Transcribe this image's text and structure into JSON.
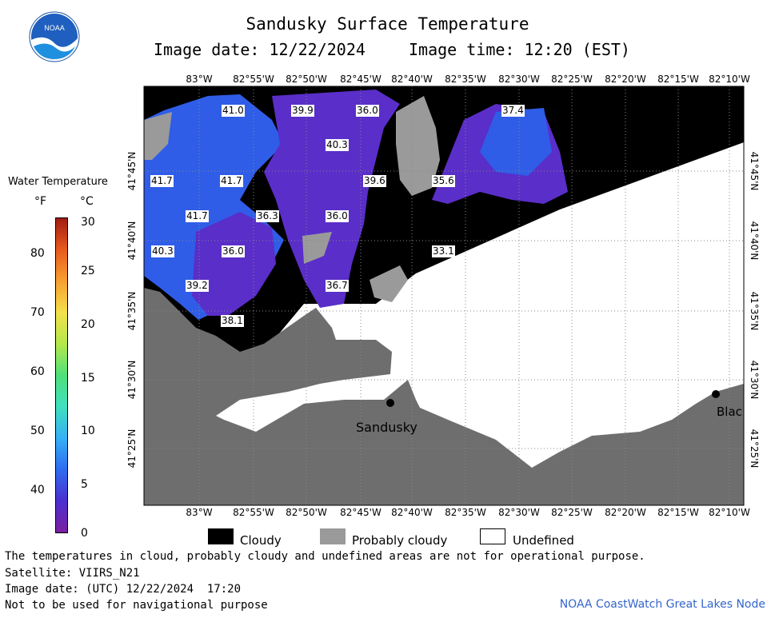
{
  "header": {
    "title": "Sandusky Surface Temperature",
    "image_date_label": "Image date: 12/22/2024",
    "image_time_label": "Image time: 12:20 (EST)",
    "logo_text": "NOAA"
  },
  "legend": {
    "title": "Water Temperature",
    "unit_f": "°F",
    "unit_c": "°C",
    "fahrenheit_ticks": [
      "80",
      "70",
      "60",
      "50",
      "40"
    ],
    "celsius_ticks": [
      "30",
      "25",
      "20",
      "15",
      "10",
      "5",
      "0"
    ],
    "colors": [
      "#7a1fa0",
      "#4b2fd0",
      "#2f6cf0",
      "#35b0f5",
      "#3fe0c0",
      "#4fe07a",
      "#b5e84a",
      "#f4e04a",
      "#f7a030",
      "#e85a20",
      "#a01c10"
    ]
  },
  "map": {
    "longitudes": [
      "83°W",
      "82°55'W",
      "82°50'W",
      "82°45'W",
      "82°40'W",
      "82°35'W",
      "82°30'W",
      "82°25'W",
      "82°20'W",
      "82°15'W",
      "82°10'W"
    ],
    "latitudes": [
      "41°45'N",
      "41°40'N",
      "41°35'N",
      "41°30'N",
      "41°25'N"
    ],
    "temperature_labels": [
      "41.0",
      "39.9",
      "36.0",
      "37.4",
      "40.3",
      "41.7",
      "41.7",
      "39.6",
      "35.6",
      "41.7",
      "36.3",
      "36.0",
      "40.3",
      "36.0",
      "33.1",
      "39.2",
      "36.7",
      "38.1"
    ],
    "places": [
      "Sandusky",
      "Blac"
    ],
    "colors": {
      "cloud": "#000000",
      "probably_cloudy": "#9a9a9a",
      "land": "#6e6e6e",
      "undefined": "#ffffff",
      "water_blue": "#2f5de8",
      "water_purple": "#5a2ec8"
    }
  },
  "key": {
    "cloudy": "Cloudy",
    "probably_cloudy": "Probably cloudy",
    "undefined": "Undefined"
  },
  "footer": {
    "line1": "The temperatures in cloud, probably cloudy and undefined areas are not for operational purpose.",
    "line2": "Satellite: VIIRS_N21",
    "line3": "Image date: (UTC) 12/22/2024  17:20",
    "line4": "Not to be used for navigational purpose",
    "credit": "NOAA CoastWatch Great Lakes Node"
  }
}
